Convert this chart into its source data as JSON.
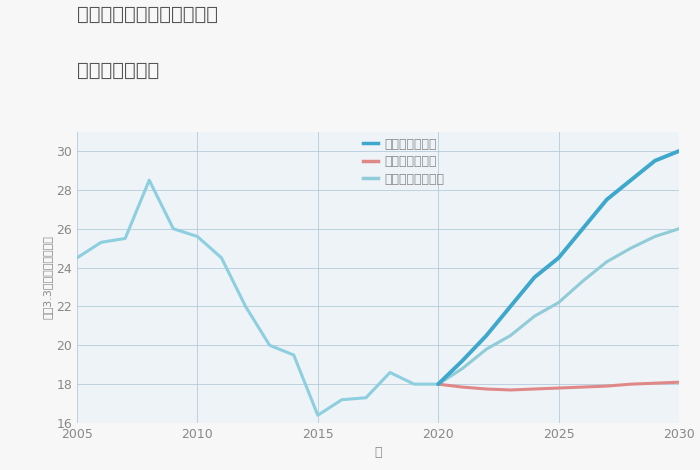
{
  "title_line1": "三重県四日市市天カ須賀の",
  "title_line2": "土地の価格推移",
  "xlabel": "年",
  "ylabel": "坪（3.3㎡）単価（万円）",
  "background_color": "#f7f7f7",
  "plot_background": "#eef3f8",
  "grid_color": "#aec6d8",
  "ylim": [
    16,
    31
  ],
  "xlim": [
    2005,
    2030
  ],
  "yticks": [
    16,
    18,
    20,
    22,
    24,
    26,
    28,
    30
  ],
  "xticks": [
    2005,
    2010,
    2015,
    2020,
    2025,
    2030
  ],
  "historical": {
    "years": [
      2005,
      2006,
      2007,
      2008,
      2009,
      2010,
      2011,
      2012,
      2013,
      2014,
      2015,
      2016,
      2017,
      2018,
      2019,
      2020
    ],
    "values": [
      24.5,
      25.3,
      25.5,
      28.5,
      26.0,
      25.6,
      24.5,
      22.0,
      20.0,
      19.5,
      16.4,
      17.2,
      17.3,
      18.6,
      18.0,
      18.0
    ],
    "color": "#8dcfdf",
    "linewidth": 2.2
  },
  "good_scenario": {
    "years": [
      2020,
      2021,
      2022,
      2023,
      2024,
      2025,
      2026,
      2027,
      2028,
      2029,
      2030
    ],
    "values": [
      18.0,
      19.2,
      20.5,
      22.0,
      23.5,
      24.5,
      26.0,
      27.5,
      28.5,
      29.5,
      30.0
    ],
    "color": "#3ea8cc",
    "linewidth": 2.8,
    "label": "グッドシナリオ"
  },
  "bad_scenario": {
    "years": [
      2020,
      2021,
      2022,
      2023,
      2024,
      2025,
      2026,
      2027,
      2028,
      2029,
      2030
    ],
    "values": [
      18.0,
      17.85,
      17.75,
      17.7,
      17.75,
      17.8,
      17.85,
      17.9,
      18.0,
      18.05,
      18.1
    ],
    "color": "#e08888",
    "linewidth": 2.2,
    "label": "バッドシナリオ"
  },
  "normal_scenario": {
    "years": [
      2020,
      2021,
      2022,
      2023,
      2024,
      2025,
      2026,
      2027,
      2028,
      2029,
      2030
    ],
    "values": [
      18.0,
      18.8,
      19.8,
      20.5,
      21.5,
      22.2,
      23.3,
      24.3,
      25.0,
      25.6,
      26.0
    ],
    "color": "#8fccd8",
    "linewidth": 2.2,
    "label": "ノーマルシナリオ"
  },
  "title_color": "#555555",
  "axis_color": "#888888",
  "tick_color": "#888888",
  "tick_fontsize": 9,
  "label_fontsize": 9
}
